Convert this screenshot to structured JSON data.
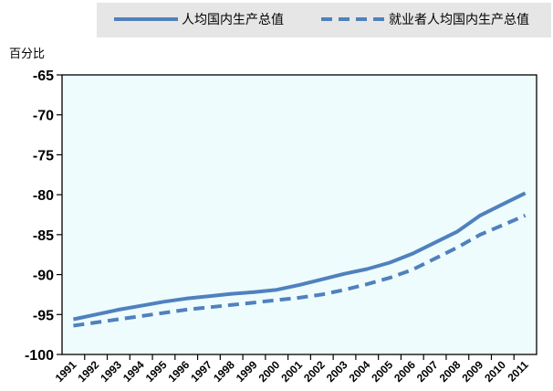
{
  "chart_data": {
    "type": "line",
    "y_unit_label": "百分比",
    "x": [
      "1991",
      "1992",
      "1993",
      "1994",
      "1995",
      "1996",
      "1997",
      "1998",
      "1999",
      "2000",
      "2001",
      "2002",
      "2003",
      "2004",
      "2005",
      "2006",
      "2007",
      "2008",
      "2009",
      "2010",
      "2011"
    ],
    "ylim": [
      -100,
      -65
    ],
    "yticks": [
      -65,
      -70,
      -75,
      -80,
      -85,
      -90,
      -95,
      -100
    ],
    "grid": false,
    "legend_position": "top",
    "series": [
      {
        "name": "人均国内生产总值",
        "style": "solid",
        "color": "#4f81bd",
        "values": [
          -95.6,
          -95.0,
          -94.4,
          -93.9,
          -93.4,
          -93.0,
          -92.7,
          -92.4,
          -92.2,
          -91.9,
          -91.3,
          -90.6,
          -89.9,
          -89.3,
          -88.5,
          -87.4,
          -86.0,
          -84.6,
          -82.6,
          -81.2,
          -79.8
        ]
      },
      {
        "name": "就业者人均国内生产总值",
        "style": "dashed",
        "color": "#4f81bd",
        "values": [
          -96.4,
          -96.0,
          -95.6,
          -95.2,
          -94.8,
          -94.4,
          -94.1,
          -93.8,
          -93.5,
          -93.2,
          -92.9,
          -92.5,
          -91.9,
          -91.2,
          -90.4,
          -89.4,
          -88.0,
          -86.6,
          -85.0,
          -83.8,
          -82.6
        ]
      }
    ]
  }
}
